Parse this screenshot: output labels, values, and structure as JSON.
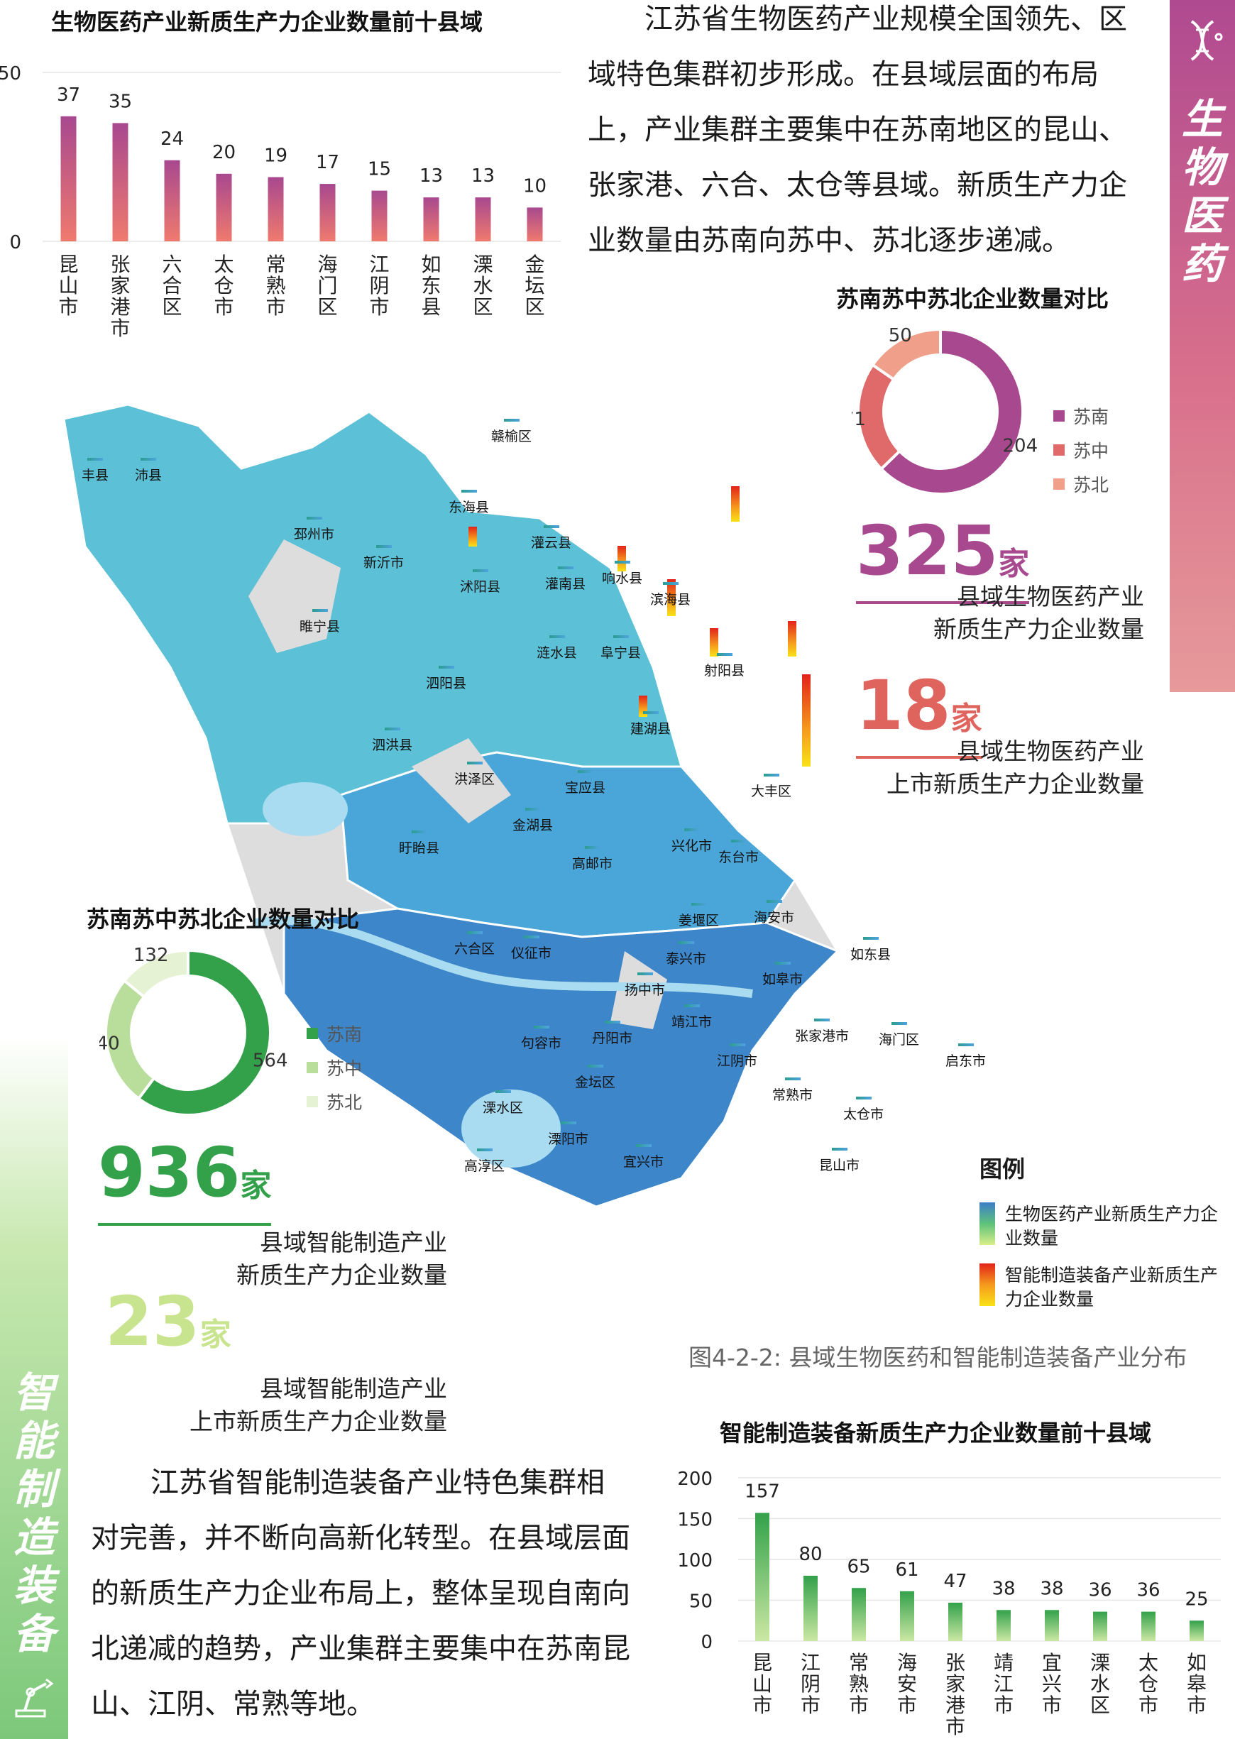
{
  "bio": {
    "tag": "生物医药",
    "top10": {
      "title": "生物医药产业新质生产力企业数量前十县域",
      "ylim": [
        0,
        50
      ],
      "yticks": [
        "0",
        "50"
      ],
      "categories": [
        "昆山市",
        "张家港市",
        "六合区",
        "太仓市",
        "常熟市",
        "海门区",
        "江阴市",
        "如东县",
        "溧水区",
        "金坛区"
      ],
      "values": [
        37,
        35,
        24,
        20,
        19,
        17,
        15,
        13,
        13,
        10
      ]
    },
    "paragraph": "江苏省生物医药产业规模全国领先、区域特色集群初步形成。在县域层面的布局上，产业集群主要集中在苏南地区的昆山、张家港、六合、太仓等县域。新质生产力企业数量由苏南向苏中、苏北逐步递减。",
    "donut": {
      "title": "苏南苏中苏北企业数量对比",
      "labels": [
        "苏南",
        "苏中",
        "苏北"
      ],
      "values": [
        204,
        71,
        50
      ],
      "colors": [
        "#a8488f",
        "#e06a6a",
        "#f0a08a"
      ]
    },
    "stat1": {
      "num": "325",
      "unit": "家",
      "line1": "县域生物医药产业",
      "line2": "新质生产力企业数量"
    },
    "stat2": {
      "num": "18",
      "unit": "家",
      "line1": "县域生物医药产业",
      "line2": "上市新质生产力企业数量"
    }
  },
  "smart": {
    "tag": "智能制造装备",
    "donut": {
      "title": "苏南苏中苏北企业数量对比",
      "labels": [
        "苏南",
        "苏中",
        "苏北"
      ],
      "values": [
        564,
        240,
        132
      ],
      "colors": [
        "#33a14a",
        "#b9dd9a",
        "#e6f2d4"
      ]
    },
    "stat1": {
      "num": "936",
      "unit": "家",
      "line1": "县域智能制造产业",
      "line2": "新质生产力企业数量"
    },
    "stat2": {
      "num": "23",
      "unit": "家",
      "line1": "县域智能制造产业",
      "line2": "上市新质生产力企业数量"
    },
    "paragraph": "江苏省智能制造装备产业特色集群相对完善，并不断向高新化转型。在县域层面的新质生产力企业布局上，整体呈现自南向北递减的趋势，产业集群主要集中在苏南昆山、江阴、常熟等地。",
    "top10": {
      "title": "智能制造装备新质生产力企业数量前十县域",
      "ylim": [
        0,
        200
      ],
      "yticks": [
        "0",
        "50",
        "100",
        "150",
        "200"
      ],
      "categories": [
        "昆山市",
        "江阴市",
        "常熟市",
        "海安市",
        "张家港市",
        "靖江市",
        "宜兴市",
        "溧水区",
        "太仓市",
        "如皋市"
      ],
      "values": [
        157,
        80,
        65,
        61,
        47,
        38,
        38,
        36,
        36,
        25
      ]
    }
  },
  "map": {
    "legend_title": "图例",
    "legend_bio": "生物医药产业新质生产力企业数量",
    "legend_smart": "智能制造装备产业新质生产力企业数量",
    "caption": "图4-2-2: 县域生物医药和智能制造装备产业分布",
    "labels": [
      "丰县",
      "沛县",
      "赣榆区",
      "东海县",
      "邳州市",
      "新沂市",
      "灌云县",
      "沭阳县",
      "灌南县",
      "响水县",
      "滨海县",
      "睢宁县",
      "涟水县",
      "阜宁县",
      "射阳县",
      "泗阳县",
      "建湖县",
      "泗洪县",
      "洪泽区",
      "宝应县",
      "大丰区",
      "金湖县",
      "盱眙县",
      "兴化市",
      "高邮市",
      "东台市",
      "姜堰区",
      "海安市",
      "六合区",
      "仪征市",
      "泰兴市",
      "如东县",
      "如皋市",
      "扬中市",
      "靖江市",
      "张家港市",
      "海门区",
      "启东市",
      "句容市",
      "丹阳市",
      "江阴市",
      "常熟市",
      "金坛区",
      "溧水区",
      "太仓市",
      "溧阳市",
      "宜兴市",
      "昆山市",
      "高淳区"
    ]
  },
  "chart_data": [
    {
      "type": "bar",
      "title": "生物医药产业新质生产力企业数量前十县域",
      "categories": [
        "昆山市",
        "张家港市",
        "六合区",
        "太仓市",
        "常熟市",
        "海门区",
        "江阴市",
        "如东县",
        "溧水区",
        "金坛区"
      ],
      "values": [
        37,
        35,
        24,
        20,
        19,
        17,
        15,
        13,
        13,
        10
      ],
      "ylim": [
        0,
        50
      ]
    },
    {
      "type": "pie",
      "title": "苏南苏中苏北企业数量对比",
      "categories": [
        "苏南",
        "苏中",
        "苏北"
      ],
      "values": [
        204,
        71,
        50
      ]
    },
    {
      "type": "pie",
      "title": "苏南苏中苏北企业数量对比",
      "categories": [
        "苏南",
        "苏中",
        "苏北"
      ],
      "values": [
        564,
        240,
        132
      ]
    },
    {
      "type": "bar",
      "title": "智能制造装备新质生产力企业数量前十县域",
      "categories": [
        "昆山市",
        "江阴市",
        "常熟市",
        "海安市",
        "张家港市",
        "靖江市",
        "宜兴市",
        "溧水区",
        "太仓市",
        "如皋市"
      ],
      "values": [
        157,
        80,
        65,
        61,
        47,
        38,
        38,
        36,
        36,
        25
      ],
      "ylim": [
        0,
        200
      ]
    }
  ]
}
